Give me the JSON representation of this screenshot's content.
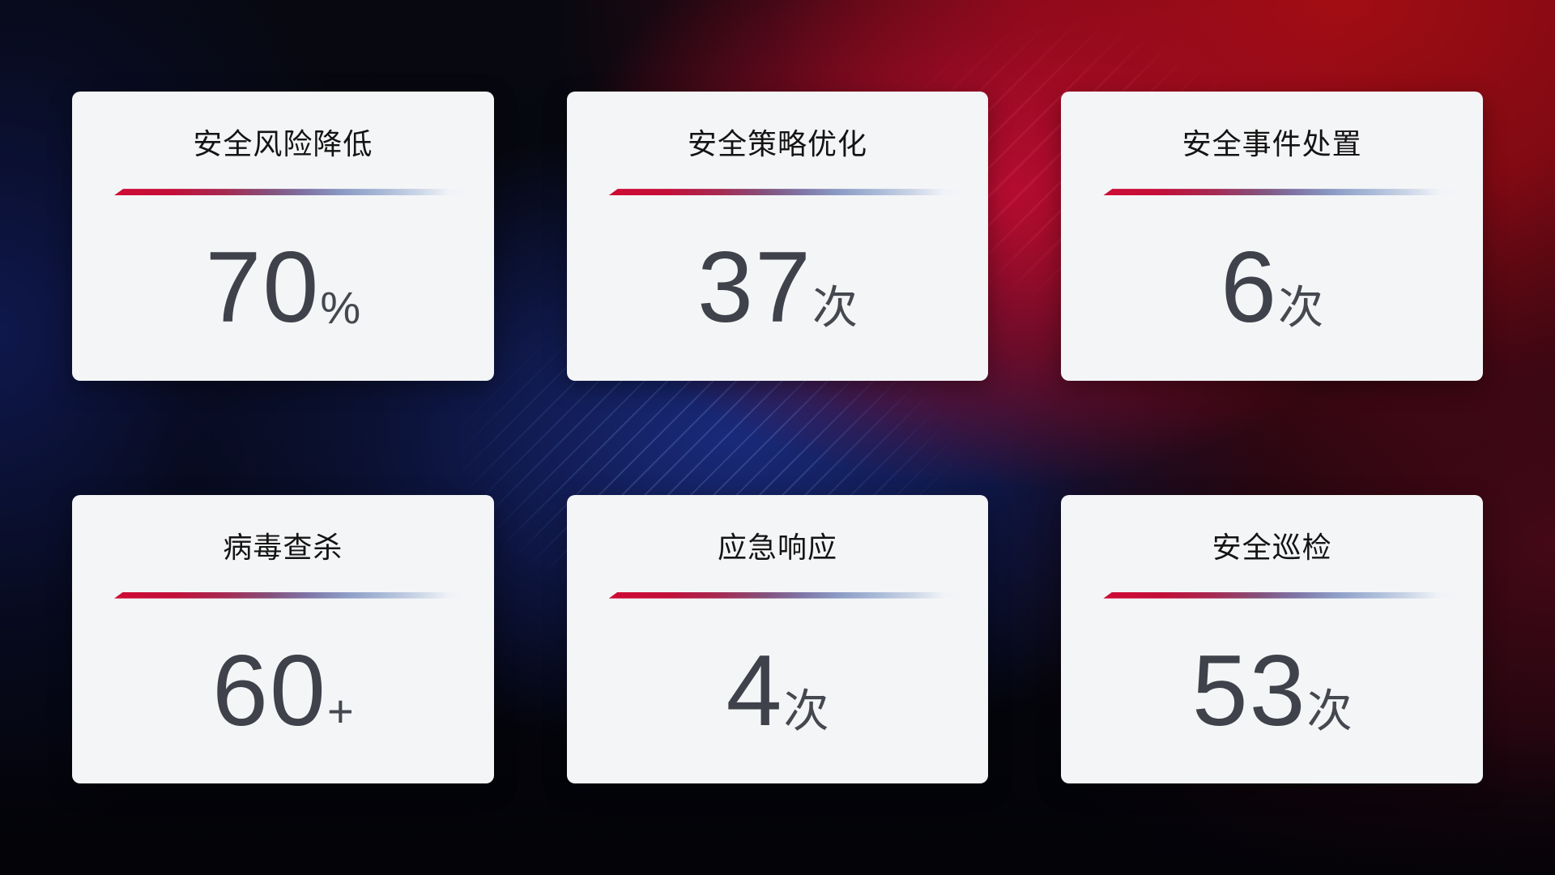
{
  "theme": {
    "background_base": "#05060d",
    "blue_glow": "#1b2d84",
    "red_glow": "#a60d13",
    "crimson_hotspot": "#c40d35",
    "card_background": "#f4f5f7",
    "title_color": "#141414",
    "value_color": "#3f424a",
    "divider_start": "#ce0c34",
    "divider_mid": "#7f74a5",
    "divider_end": "#ccd7e7"
  },
  "cards": [
    {
      "title": "安全风险降低",
      "value": "70",
      "suffix": "%"
    },
    {
      "title": "安全策略优化",
      "value": "37",
      "suffix": "次"
    },
    {
      "title": "安全事件处置",
      "value": "6",
      "suffix": "次"
    },
    {
      "title": "病毒查杀",
      "value": "60",
      "suffix": "+"
    },
    {
      "title": "应急响应",
      "value": "4",
      "suffix": "次"
    },
    {
      "title": "安全巡检",
      "value": "53",
      "suffix": "次"
    }
  ]
}
